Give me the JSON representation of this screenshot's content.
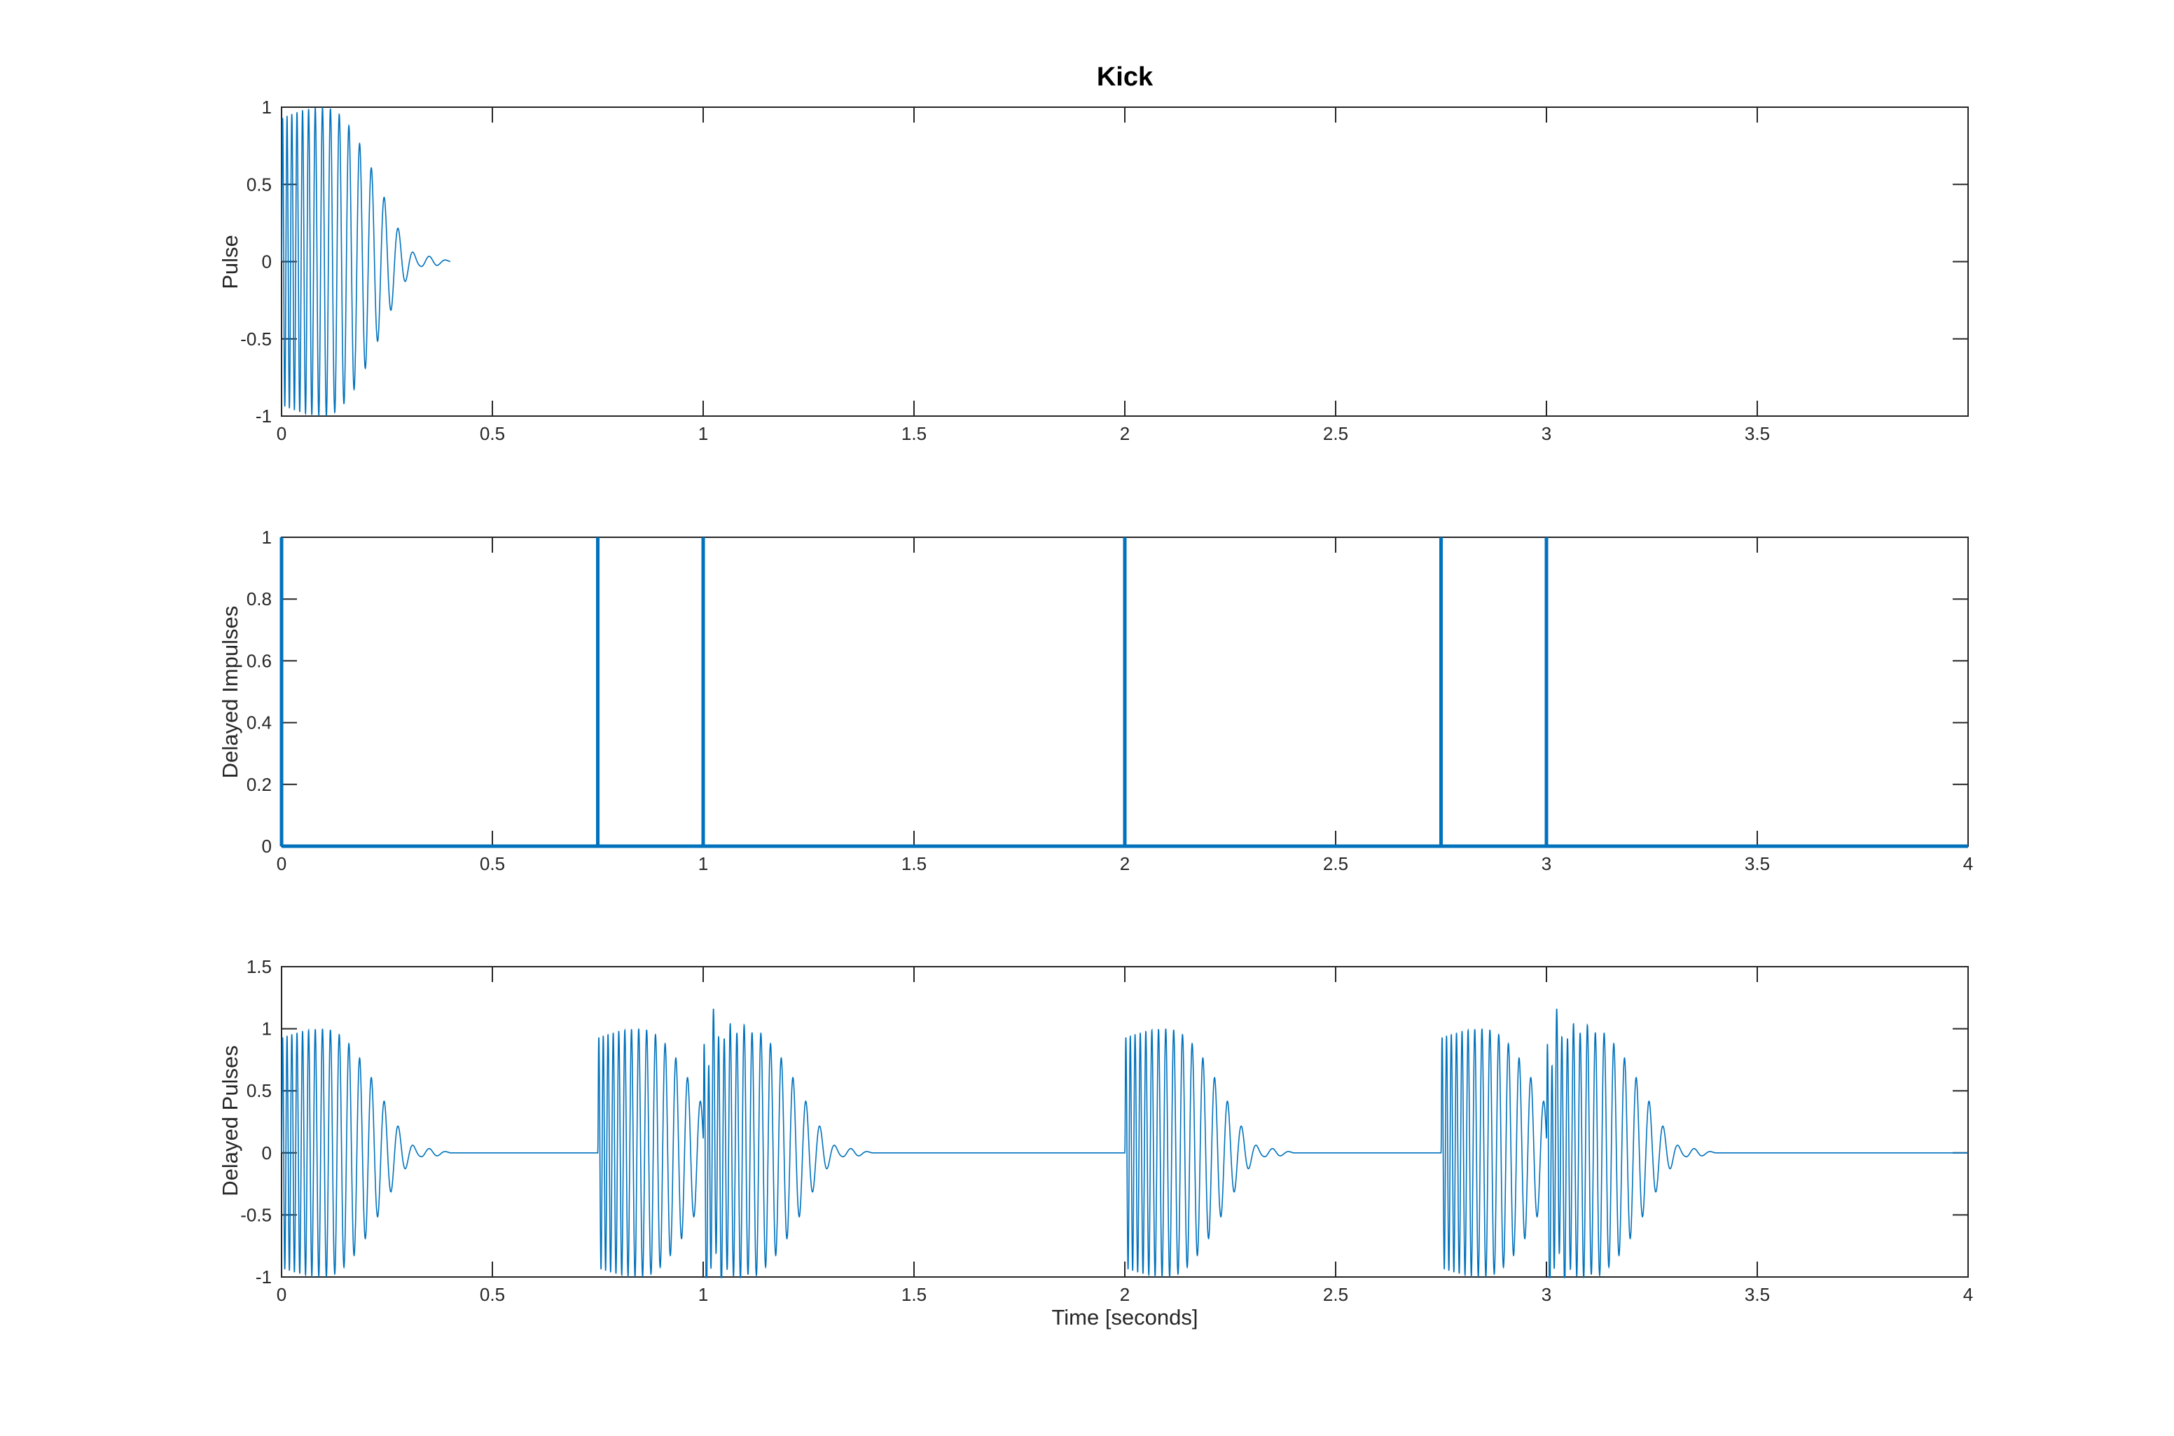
{
  "figure": {
    "title": "Kick",
    "xlabel": "Time [seconds]",
    "background_color": "#ffffff",
    "line_color": "#0072BD",
    "axis_color": "#262626",
    "title_color": "#000000"
  },
  "chart_data": [
    {
      "type": "line",
      "name": "pulse",
      "title": "Kick",
      "ylabel": "Pulse",
      "xlim": [
        0,
        4
      ],
      "ylim": [
        -1,
        1
      ],
      "xticks": [
        0,
        0.5,
        1,
        1.5,
        2,
        2.5,
        3,
        3.5
      ],
      "yticks": [
        -1,
        -0.5,
        0,
        0.5,
        1
      ],
      "grid": false,
      "legend": null,
      "series": [
        {
          "name": "kick pulse",
          "description": "Single synthesized kick-drum pulse: sine with exponentially falling frequency (about 100 Hz down to 22 Hz) under a decaying amplitude envelope; nonzero only from 0 to about 0.4 s, peak amplitude 1 near t=0.1 s, small residual ring around t=0.3-0.38 s"
        }
      ],
      "pulse_params": {
        "f_start_hz": 100,
        "f_end_hz": 22,
        "freq_tau_s": 0.115,
        "attack_s": 0.0015,
        "start_amp": 0.93,
        "peak_time_s": 0.1,
        "decay_span_s": 0.23,
        "decay_shape_pow": 0.75,
        "tail_ring_amp": 0.035,
        "tail_ring_center_s": 0.345,
        "tail_ring_width_s": 0.04,
        "duration_s": 0.4
      }
    },
    {
      "type": "line",
      "name": "delayed-impulses",
      "ylabel": "Delayed Impulses",
      "xlim": [
        0,
        4
      ],
      "ylim": [
        0,
        1
      ],
      "xticks": [
        0,
        0.5,
        1,
        1.5,
        2,
        2.5,
        3,
        3.5,
        4
      ],
      "yticks": [
        0,
        0.2,
        0.4,
        0.6,
        0.8,
        1
      ],
      "grid": false,
      "legend": null,
      "impulse_times": [
        0,
        0.75,
        1,
        2,
        2.75,
        3
      ],
      "impulse_height": 1,
      "baseline_value": 0,
      "series": [
        {
          "name": "impulse train",
          "description": "Unit impulses of height 1 at t = 0, 0.75, 1, 2, 2.75 and 3 seconds on a zero baseline spanning 0 to 4 s, drawn with a thick line"
        }
      ]
    },
    {
      "type": "line",
      "name": "delayed-pulses",
      "ylabel": "Delayed Pulses",
      "xlim": [
        0,
        4
      ],
      "ylim": [
        -1,
        1.5
      ],
      "xticks": [
        0,
        0.5,
        1,
        1.5,
        2,
        2.5,
        3,
        3.5,
        4
      ],
      "yticks": [
        -1,
        -0.5,
        0,
        0.5,
        1,
        1.5
      ],
      "grid": false,
      "legend": null,
      "impulse_times": [
        0,
        0.75,
        1,
        2,
        2.75,
        3
      ],
      "series": [
        {
          "name": "delayed pulses",
          "description": "Kick pulse convolved with the impulse train: pulse bursts starting at 0, 0.75, 1, 2, 2.75 and 3 s; overlapping bursts sum to peaks of about 1.13 just after t=1 s and t=3 s and clip at the lower axis limit of -1"
        }
      ]
    }
  ]
}
